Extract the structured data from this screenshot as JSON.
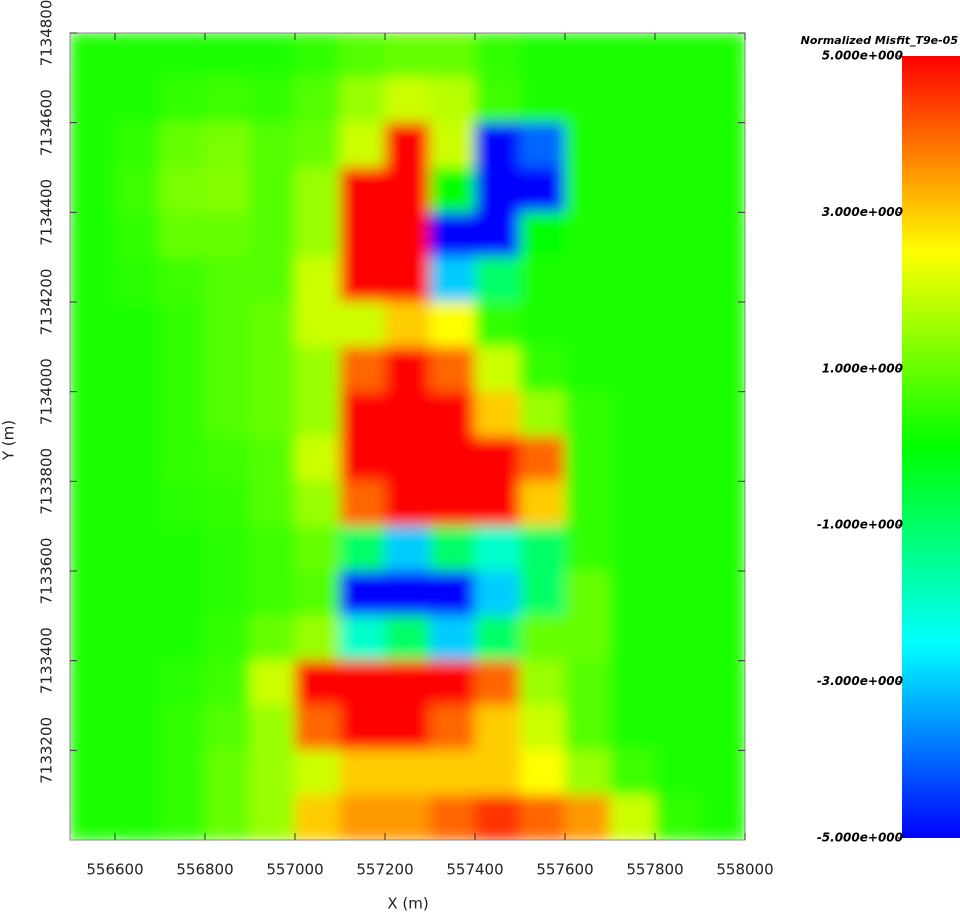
{
  "chart_data": {
    "type": "heatmap",
    "xlabel": "X (m)",
    "ylabel": "Y (m)",
    "colorbar_title": "Normalized Misfit_T9e-05",
    "colors": [
      "#0000ff",
      "#00ffff",
      "#00ff00",
      "#ffff00",
      "#ff0000"
    ],
    "zlim": [
      -5,
      5
    ],
    "zticks": [
      {
        "value": 5,
        "label": "5.000e+000"
      },
      {
        "value": 3,
        "label": "3.000e+000"
      },
      {
        "value": 1,
        "label": "1.000e+000"
      },
      {
        "value": -1,
        "label": "-1.000e+000"
      },
      {
        "value": -3,
        "label": "-3.000e+000"
      },
      {
        "value": -5,
        "label": "-5.000e+000"
      }
    ],
    "xlim": [
      556500,
      558000
    ],
    "xticks": [
      556600,
      556800,
      557000,
      557200,
      557400,
      557600,
      557800,
      558000
    ],
    "ylim": [
      7133000,
      7134800
    ],
    "yticks": [
      7133200,
      7133400,
      7133600,
      7133800,
      7134000,
      7134200,
      7134400,
      7134600,
      7134800
    ],
    "x": [
      556550,
      556650,
      556750,
      556850,
      556950,
      557050,
      557150,
      557250,
      557350,
      557450,
      557550,
      557650,
      557750,
      557850,
      557950
    ],
    "y": [
      7134750,
      7134650,
      7134550,
      7134450,
      7134350,
      7134250,
      7134150,
      7134050,
      7133950,
      7133850,
      7133750,
      7133650,
      7133550,
      7133450,
      7133350,
      7133250,
      7133150,
      7133050
    ],
    "z": [
      [
        0.3,
        0.3,
        0.3,
        0.3,
        0.3,
        0.5,
        0.8,
        1,
        1,
        0.5,
        0.3,
        0.3,
        0.3,
        0.3,
        0.3
      ],
      [
        0.3,
        0.3,
        0.5,
        0.6,
        0.5,
        0.8,
        1.5,
        2,
        1.8,
        0.6,
        0.3,
        0.3,
        0.3,
        0.3,
        0.3
      ],
      [
        0.3,
        0.5,
        1,
        1.2,
        0.8,
        1,
        2,
        5,
        2,
        -5,
        -4,
        0.3,
        0.3,
        0.3,
        0.3
      ],
      [
        0.3,
        0.6,
        1.2,
        1.3,
        0.8,
        1.5,
        5,
        5,
        0,
        -5,
        -5,
        0.3,
        0.3,
        0.3,
        0.3
      ],
      [
        0.3,
        0.5,
        1,
        1,
        0.8,
        1.5,
        5,
        5,
        -5,
        -5,
        0,
        0.3,
        0.3,
        0.3,
        0.3
      ],
      [
        0.3,
        0.4,
        0.6,
        0.8,
        0.8,
        2,
        5,
        5,
        -3,
        -1,
        0.3,
        0.3,
        0.3,
        0.3,
        0.3
      ],
      [
        0.3,
        0.3,
        0.5,
        0.8,
        1,
        2,
        2,
        3,
        2.5,
        0.5,
        0.3,
        0.3,
        0.3,
        0.3,
        0.3
      ],
      [
        0.3,
        0.3,
        0.5,
        0.8,
        1,
        1.5,
        4,
        5,
        4,
        2,
        0.5,
        0.3,
        0.3,
        0.3,
        0.3
      ],
      [
        0.3,
        0.3,
        0.5,
        0.8,
        1,
        1.5,
        5,
        5,
        5,
        3,
        1.5,
        0.5,
        0.3,
        0.3,
        0.3
      ],
      [
        0.3,
        0.3,
        0.5,
        0.6,
        0.8,
        2,
        5,
        5,
        5,
        5,
        4,
        0.5,
        0.3,
        0.3,
        0.3
      ],
      [
        0.3,
        0.3,
        0.4,
        0.5,
        0.8,
        1.5,
        4,
        5,
        5,
        5,
        3,
        0.5,
        0.3,
        0.3,
        0.3
      ],
      [
        0.3,
        0.3,
        0.3,
        0.4,
        0.6,
        1,
        -1,
        -3,
        -1,
        -2,
        -1,
        0.5,
        0.3,
        0.3,
        0.3
      ],
      [
        0.3,
        0.3,
        0.3,
        0.4,
        0.6,
        0.8,
        -5,
        -5,
        -5,
        -3,
        -1,
        1,
        0.3,
        0.3,
        0.3
      ],
      [
        0.3,
        0.3,
        0.3,
        0.5,
        1,
        1.5,
        -2,
        -1,
        -3,
        -1,
        1,
        1,
        0.3,
        0.3,
        0.3
      ],
      [
        0.3,
        0.3,
        0.4,
        0.6,
        2,
        5,
        5,
        5,
        5,
        4,
        1.5,
        0.8,
        0.3,
        0.3,
        0.3
      ],
      [
        0.3,
        0.3,
        0.5,
        0.8,
        1.5,
        4,
        5,
        5,
        4,
        3,
        2,
        0.8,
        0.3,
        0.3,
        0.3
      ],
      [
        0.3,
        0.3,
        0.5,
        1,
        1.5,
        2,
        3,
        3,
        3,
        3,
        2.5,
        1.5,
        0.6,
        0.3,
        0.3
      ],
      [
        0.3,
        0.3,
        0.5,
        1,
        1.5,
        3,
        3.5,
        3.5,
        4,
        4.5,
        4,
        3.5,
        2,
        0.5,
        0.3
      ]
    ]
  }
}
